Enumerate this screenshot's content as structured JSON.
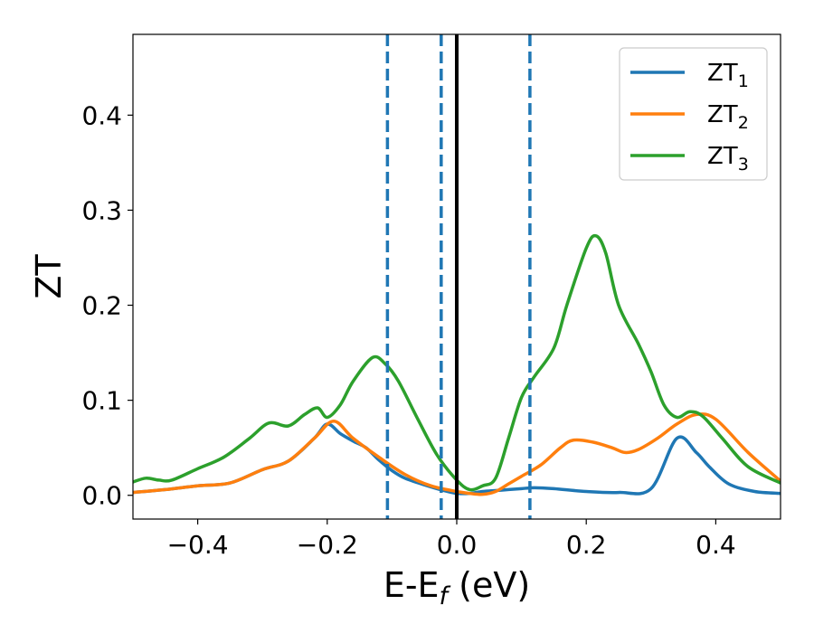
{
  "chart_data": {
    "type": "line",
    "xlabel": "E-E_f (eV)",
    "xlabel_parts": {
      "main": "E-E",
      "sub": "f",
      "tail": " (eV)"
    },
    "ylabel": "ZT",
    "xlim": [
      -0.5,
      0.5
    ],
    "ylim": [
      -0.025,
      0.485
    ],
    "x_ticks": [
      -0.4,
      -0.2,
      0.0,
      0.2,
      0.4
    ],
    "x_tick_labels": [
      "−0.4",
      "−0.2",
      "0.0",
      "0.2",
      "0.4"
    ],
    "y_ticks": [
      0.0,
      0.1,
      0.2,
      0.3,
      0.4
    ],
    "y_tick_labels": [
      "0.0",
      "0.1",
      "0.2",
      "0.3",
      "0.4"
    ],
    "grid": false,
    "legend_position": "top-right",
    "series": [
      {
        "name": "ZT1",
        "label_main": "ZT",
        "label_sub": "1",
        "color": "#1f77b4",
        "points": [
          [
            -0.5,
            0.003
          ],
          [
            -0.45,
            0.006
          ],
          [
            -0.4,
            0.01
          ],
          [
            -0.35,
            0.013
          ],
          [
            -0.3,
            0.027
          ],
          [
            -0.26,
            0.036
          ],
          [
            -0.22,
            0.06
          ],
          [
            -0.2,
            0.075
          ],
          [
            -0.18,
            0.065
          ],
          [
            -0.16,
            0.057
          ],
          [
            -0.14,
            0.05
          ],
          [
            -0.12,
            0.037
          ],
          [
            -0.1,
            0.026
          ],
          [
            -0.08,
            0.018
          ],
          [
            -0.05,
            0.011
          ],
          [
            -0.02,
            0.005
          ],
          [
            0.0,
            0.002
          ],
          [
            0.02,
            0.002
          ],
          [
            0.04,
            0.004
          ],
          [
            0.06,
            0.005
          ],
          [
            0.08,
            0.006
          ],
          [
            0.1,
            0.007
          ],
          [
            0.12,
            0.008
          ],
          [
            0.15,
            0.007
          ],
          [
            0.2,
            0.004
          ],
          [
            0.25,
            0.003
          ],
          [
            0.3,
            0.007
          ],
          [
            0.34,
            0.06
          ],
          [
            0.37,
            0.045
          ],
          [
            0.39,
            0.03
          ],
          [
            0.42,
            0.012
          ],
          [
            0.46,
            0.004
          ],
          [
            0.5,
            0.002
          ]
        ]
      },
      {
        "name": "ZT2",
        "label_main": "ZT",
        "label_sub": "2",
        "color": "#ff7f0e",
        "points": [
          [
            -0.5,
            0.003
          ],
          [
            -0.45,
            0.006
          ],
          [
            -0.4,
            0.01
          ],
          [
            -0.35,
            0.013
          ],
          [
            -0.3,
            0.027
          ],
          [
            -0.26,
            0.036
          ],
          [
            -0.22,
            0.06
          ],
          [
            -0.19,
            0.078
          ],
          [
            -0.16,
            0.06
          ],
          [
            -0.12,
            0.04
          ],
          [
            -0.08,
            0.022
          ],
          [
            -0.04,
            0.01
          ],
          [
            0.0,
            0.004
          ],
          [
            0.02,
            0.002
          ],
          [
            0.04,
            0.001
          ],
          [
            0.06,
            0.004
          ],
          [
            0.08,
            0.012
          ],
          [
            0.1,
            0.02
          ],
          [
            0.13,
            0.032
          ],
          [
            0.16,
            0.05
          ],
          [
            0.18,
            0.058
          ],
          [
            0.21,
            0.056
          ],
          [
            0.24,
            0.05
          ],
          [
            0.26,
            0.045
          ],
          [
            0.28,
            0.048
          ],
          [
            0.31,
            0.06
          ],
          [
            0.34,
            0.075
          ],
          [
            0.37,
            0.085
          ],
          [
            0.4,
            0.08
          ],
          [
            0.45,
            0.045
          ],
          [
            0.5,
            0.015
          ]
        ]
      },
      {
        "name": "ZT3",
        "label_main": "ZT",
        "label_sub": "3",
        "color": "#2ca02c",
        "points": [
          [
            -0.5,
            0.014
          ],
          [
            -0.48,
            0.018
          ],
          [
            -0.46,
            0.016
          ],
          [
            -0.44,
            0.016
          ],
          [
            -0.4,
            0.028
          ],
          [
            -0.36,
            0.04
          ],
          [
            -0.32,
            0.06
          ],
          [
            -0.29,
            0.076
          ],
          [
            -0.26,
            0.073
          ],
          [
            -0.235,
            0.085
          ],
          [
            -0.215,
            0.092
          ],
          [
            -0.2,
            0.082
          ],
          [
            -0.18,
            0.095
          ],
          [
            -0.16,
            0.12
          ],
          [
            -0.13,
            0.145
          ],
          [
            -0.11,
            0.138
          ],
          [
            -0.09,
            0.12
          ],
          [
            -0.06,
            0.08
          ],
          [
            -0.03,
            0.042
          ],
          [
            0.0,
            0.016
          ],
          [
            0.02,
            0.006
          ],
          [
            0.04,
            0.01
          ],
          [
            0.06,
            0.018
          ],
          [
            0.08,
            0.06
          ],
          [
            0.1,
            0.103
          ],
          [
            0.12,
            0.125
          ],
          [
            0.15,
            0.155
          ],
          [
            0.17,
            0.2
          ],
          [
            0.2,
            0.26
          ],
          [
            0.215,
            0.273
          ],
          [
            0.23,
            0.255
          ],
          [
            0.25,
            0.2
          ],
          [
            0.28,
            0.16
          ],
          [
            0.3,
            0.13
          ],
          [
            0.32,
            0.095
          ],
          [
            0.34,
            0.082
          ],
          [
            0.36,
            0.088
          ],
          [
            0.38,
            0.083
          ],
          [
            0.41,
            0.06
          ],
          [
            0.45,
            0.03
          ],
          [
            0.5,
            0.013
          ]
        ]
      }
    ],
    "vertical_lines": [
      {
        "x": -0.107,
        "style": "dashed",
        "color": "#1f77b4"
      },
      {
        "x": -0.024,
        "style": "dashed",
        "color": "#1f77b4"
      },
      {
        "x": 0.0,
        "style": "solid",
        "color": "#000000"
      },
      {
        "x": 0.113,
        "style": "dashed",
        "color": "#1f77b4"
      }
    ]
  }
}
